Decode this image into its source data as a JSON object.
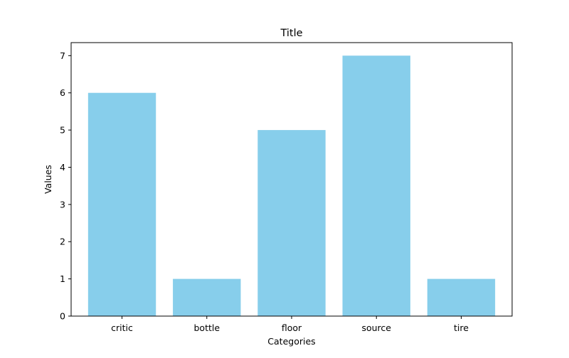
{
  "chart_data": {
    "type": "bar",
    "title": "Title",
    "xlabel": "Categories",
    "ylabel": "Values",
    "categories": [
      "critic",
      "bottle",
      "floor",
      "source",
      "tire"
    ],
    "values": [
      6,
      1,
      5,
      7,
      1
    ],
    "ylim": [
      0,
      7.35
    ],
    "yticks": [
      0,
      1,
      2,
      3,
      4,
      5,
      6,
      7
    ],
    "grid": false,
    "legend": "none",
    "bar_color": "#87CEEB"
  }
}
